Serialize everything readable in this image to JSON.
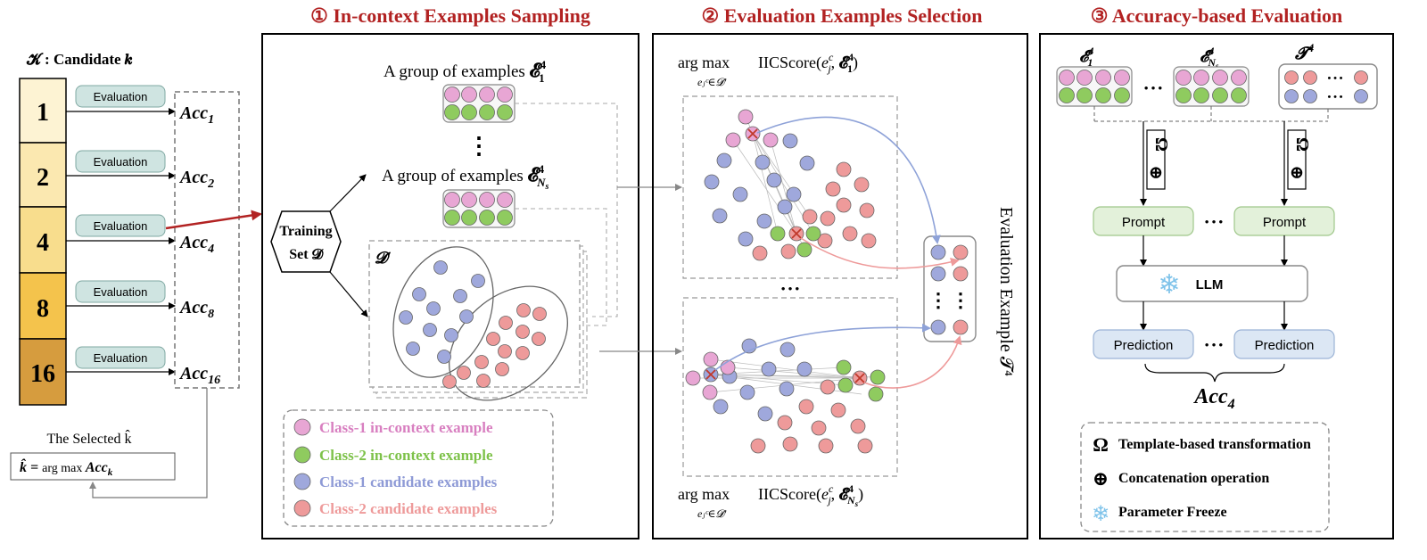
{
  "colors": {
    "title_red": "#B22222",
    "pink": "#E8A6D4",
    "green": "#8FCB5F",
    "blue": "#9FA8DC",
    "red": "#EE9A9A",
    "eval_box": "#CFE4E1",
    "prompt_box": "#E3F1DA",
    "prediction_box": "#DCE7F4",
    "k1": "#FDF3D3",
    "k2": "#FBE8B0",
    "k4": "#F8DD8D",
    "k8": "#F4C34C",
    "k16": "#D69C3E"
  },
  "left": {
    "header": "𝓚 : Candidate 𝒌",
    "k_values": [
      "1",
      "2",
      "4",
      "8",
      "16"
    ],
    "eval_label": "Evaluation",
    "acc_base": "Acc",
    "acc_subs": [
      "1",
      "2",
      "4",
      "8",
      "16"
    ],
    "selected_caption": "The Selected k̂",
    "formula_lhs": "k̂ = ",
    "formula_argmax": "arg max ",
    "formula_acc": "Acc",
    "formula_sub": "k"
  },
  "panel1": {
    "title": "① In-context Examples Sampling",
    "group_label": "A group of examples ",
    "eps_symbol": "𝓔",
    "eps_sup": "4",
    "eps_sub1": "1",
    "eps_sub_ns": "N",
    "eps_sub_ns2": "s",
    "dots": "⋮",
    "training_line1": "Training",
    "training_line2": "Set 𝓓",
    "dprime": "𝓓′",
    "legend": [
      "Class-1 in-context example",
      "Class-2 in-context example",
      "Class-1 candidate examples",
      "Class-2 candidate examples"
    ]
  },
  "panel2": {
    "title": "② Evaluation Examples Selection",
    "argmax": "arg max",
    "argmax_sub": "eⱼᶜ∈𝓓′",
    "score_prefix": "IICScore(",
    "score_e": "e",
    "score_e_sub": "j",
    "score_e_sup": "c",
    "score_sep": ", ",
    "score_suffix": ")",
    "hdots": "• • •",
    "vdots": "⋮",
    "side_label": "Evaluation Example 𝓣⁴"
  },
  "panel3": {
    "title": "③ Accuracy-based Evaluation",
    "t_symbol": "𝓣",
    "t_sup": "4",
    "omega": "Ω",
    "oplus": "⊕",
    "prompt": "Prompt",
    "llm": "LLM",
    "snow": "❄",
    "prediction": "Prediction",
    "acc4_base": "Acc",
    "acc4_sub": "4",
    "hdots": "• • •",
    "legend": [
      {
        "sym": "Ω",
        "text": "Template-based transformation"
      },
      {
        "sym": "⊕",
        "text": "Concatenation operation"
      },
      {
        "sym": "❄",
        "text": "Parameter Freeze"
      }
    ]
  }
}
